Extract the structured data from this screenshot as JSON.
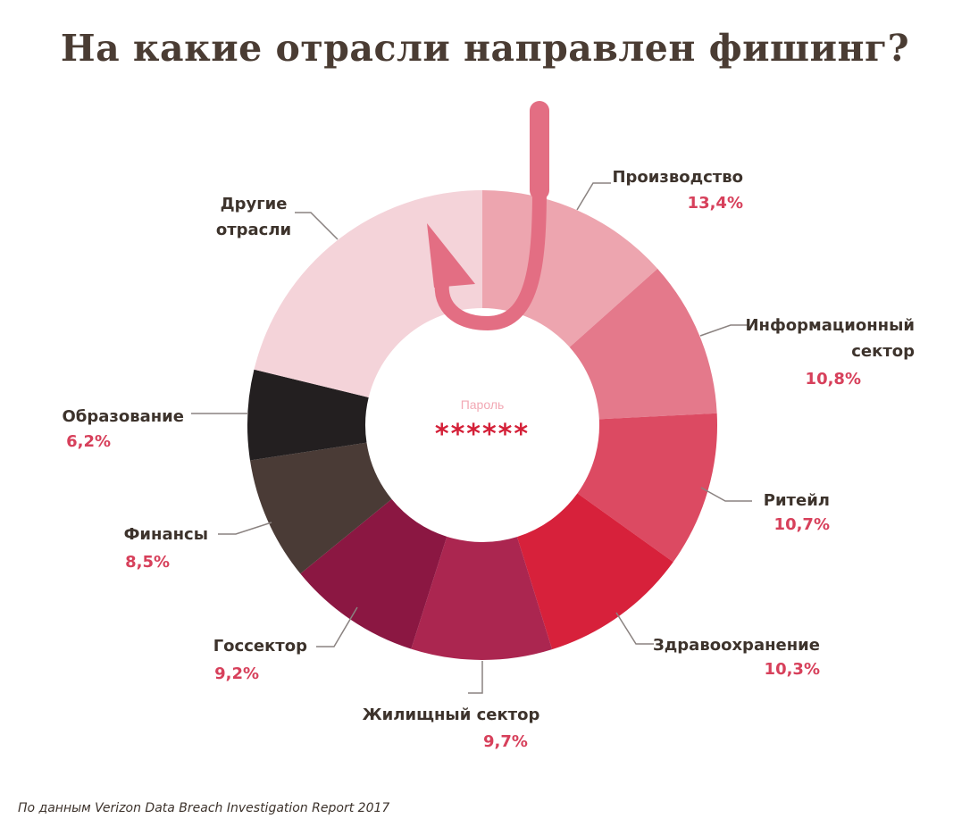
{
  "title": "На какие отрасли направлен фишинг?",
  "source": "По данным Verizon Data Breach Investigation Report 2017",
  "center": {
    "label": "Пароль",
    "value": "******"
  },
  "chart_data": {
    "type": "pie",
    "title": "На какие отрасли направлен фишинг?",
    "unit": "%",
    "slices": [
      {
        "label": [
          "Производство"
        ],
        "value": 13.4,
        "value_text": "13,4%",
        "color": "#eda5af"
      },
      {
        "label": [
          "Информационный",
          "сектор"
        ],
        "value": 10.8,
        "value_text": "10,8%",
        "color": "#e4798b"
      },
      {
        "label": [
          "Ритейл"
        ],
        "value": 10.7,
        "value_text": "10,7%",
        "color": "#dc4a62"
      },
      {
        "label": [
          "Здравоохранение"
        ],
        "value": 10.3,
        "value_text": "10,3%",
        "color": "#d7213b"
      },
      {
        "label": [
          "Жилищный сектор"
        ],
        "value": 9.7,
        "value_text": "9,7%",
        "color": "#ab2650"
      },
      {
        "label": [
          "Госсектор"
        ],
        "value": 9.2,
        "value_text": "9,2%",
        "color": "#8b1742"
      },
      {
        "label": [
          "Финансы"
        ],
        "value": 8.5,
        "value_text": "8,5%",
        "color": "#4a3b36"
      },
      {
        "label": [
          "Образование"
        ],
        "value": 6.2,
        "value_text": "6,2%",
        "color": "#231f20"
      },
      {
        "label": [
          "Другие",
          "отрасли"
        ],
        "value": null,
        "value_text": "",
        "color": "#f4d3d9"
      }
    ]
  }
}
